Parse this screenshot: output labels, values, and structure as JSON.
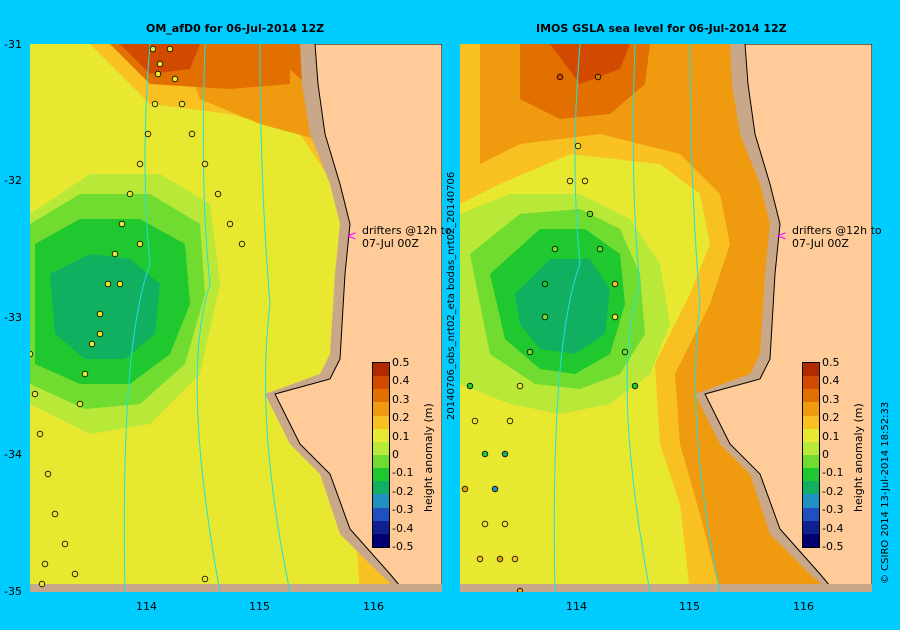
{
  "left_panel": {
    "title": "OM_afD0 for 06-Jul-2014 12Z",
    "annotation_line1": "drifters @12h to",
    "annotation_line2": "07-Jul 00Z"
  },
  "right_panel": {
    "title": "IMOS GSLA sea level  for 06-Jul-2014 12Z",
    "annotation_line1": "drifters @12h to",
    "annotation_line2": "07-Jul 00Z"
  },
  "lat_labels": [
    "-31",
    "-32",
    "-33",
    "-34",
    "-35"
  ],
  "lon_labels": [
    "114",
    "115",
    "116"
  ],
  "colorbar": {
    "title": "height anomaly (m)",
    "ticks": [
      "0.5",
      "0.4",
      "0.3",
      "0.2",
      "0.1",
      "0",
      "-0.1",
      "-0.2",
      "-0.3",
      "-0.4",
      "-0.5"
    ],
    "colors": [
      "#b22a00",
      "#d24a00",
      "#e27000",
      "#f09a10",
      "#f8c020",
      "#e8e830",
      "#b8e838",
      "#70dc30",
      "#20c830",
      "#10b060",
      "#2090c0",
      "#2050c0",
      "#102090",
      "#000070"
    ]
  },
  "side_text": "20140706_obs_nrt02_eta   bodas_nrt02_20140706",
  "credit": "© CSIRO 2014   13-Jul-2014 18:52:33",
  "colors": {
    "background": "#00ccff",
    "land": "#ffcc99",
    "shelf": "#c8a888",
    "coast": "#000000"
  }
}
